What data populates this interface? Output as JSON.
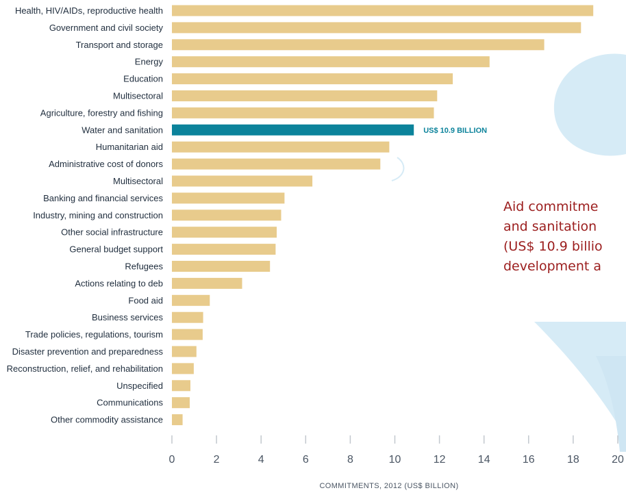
{
  "colors": {
    "bar": "#e8cb8c",
    "highlight": "#0c839b",
    "callout": "#9b1d1d",
    "axis": "#c2c8ce",
    "decor": "#d6ebf6"
  },
  "callout": {
    "lines": [
      "Aid commitme",
      "and sanitation",
      "(US$ 10.9 billio",
      "development a"
    ]
  },
  "chart_data": {
    "type": "bar",
    "orientation": "horizontal",
    "categories": [
      "Health, HIV/AIDs, reproductive health",
      "Government and civil society",
      "Transport and storage",
      "Energy",
      "Education",
      "Multisectoral",
      "Agriculture, forestry and fishing",
      "Water and sanitation",
      "Humanitarian aid",
      "Administrative cost of donors",
      "Multisectoral",
      "Banking and financial services",
      "Industry, mining and construction",
      "Other social infrastructure",
      "General budget support",
      "Refugees",
      "Actions relating to deb",
      "Food aid",
      "Business services",
      "Trade policies, regulations, tourism",
      "Disaster prevention and preparedness",
      "Reconstruction, relief, and rehabilitation",
      "Unspecified",
      "Communications",
      "Other commodity assistance"
    ],
    "values": [
      18.9,
      18.35,
      16.7,
      14.25,
      12.6,
      11.9,
      11.75,
      10.85,
      9.75,
      9.35,
      6.3,
      5.05,
      4.9,
      4.7,
      4.65,
      4.4,
      3.15,
      1.7,
      1.4,
      1.38,
      1.1,
      0.98,
      0.83,
      0.8,
      0.48
    ],
    "highlight_index": 7,
    "annotation": "US$ 10.9 BILLION",
    "xlim": [
      0,
      20
    ],
    "xticks": [
      0,
      2,
      4,
      6,
      8,
      10,
      12,
      14,
      16,
      18,
      20
    ],
    "xlabel": "COMMITMENTS, 2012 (US$ BILLION)",
    "grid": false
  }
}
